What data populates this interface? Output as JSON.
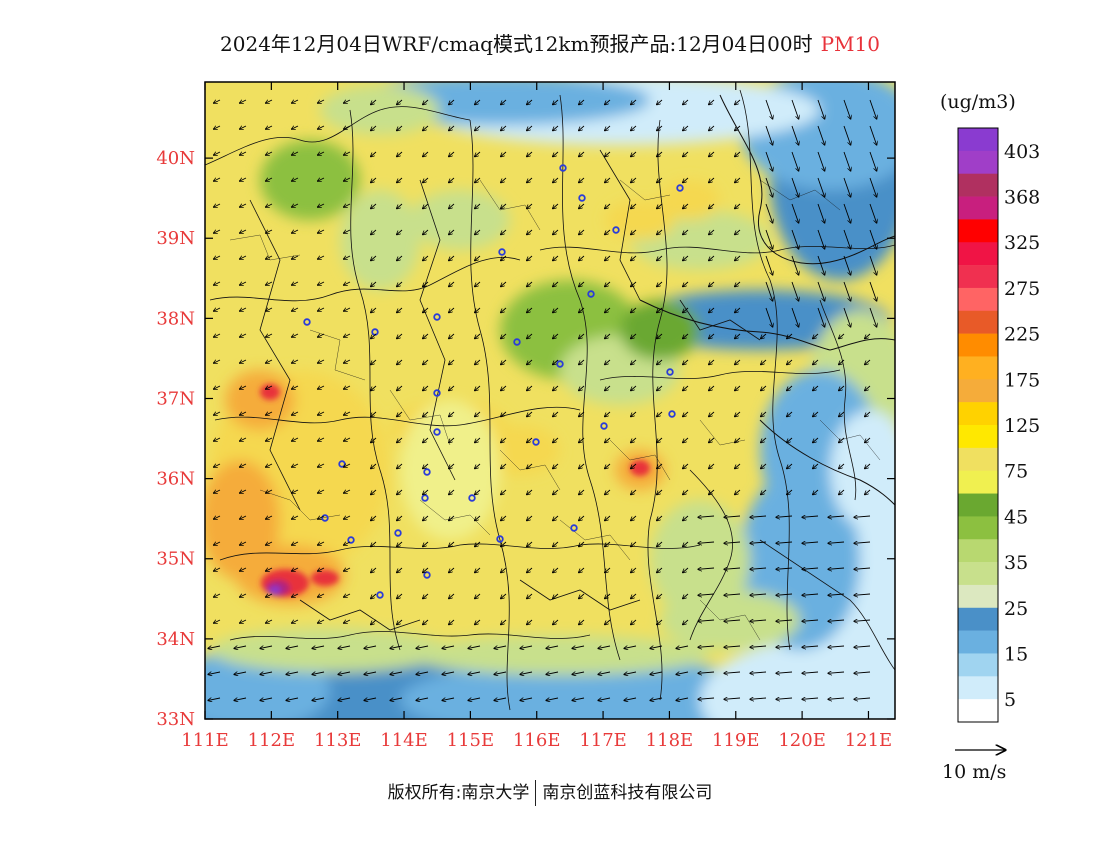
{
  "title": {
    "main": "2024年12月04日WRF/cmaq模式12km预报产品:12月04日00时",
    "variable": "PM10"
  },
  "footer": {
    "copyright": "版权所有:南京大学",
    "company": "南京创蓝科技有限公司"
  },
  "axes": {
    "lat_labels": [
      "40N",
      "39N",
      "38N",
      "37N",
      "36N",
      "35N",
      "34N",
      "33N"
    ],
    "lon_labels": [
      "111E",
      "112E",
      "113E",
      "114E",
      "115E",
      "116E",
      "117E",
      "118E",
      "119E",
      "120E",
      "121E"
    ],
    "lat_range": [
      33,
      40.95
    ],
    "lon_range": [
      111,
      121.4
    ],
    "label_color": "#e83a3a"
  },
  "colorbar": {
    "unit": "(ug/m3)",
    "labels": [
      "403",
      "368",
      "325",
      "275",
      "225",
      "175",
      "125",
      "75",
      "45",
      "35",
      "25",
      "15",
      "5"
    ],
    "colors": [
      "#8a3bd0",
      "#a03ec8",
      "#b03060",
      "#c81f7e",
      "#ff0000",
      "#f01445",
      "#f03050",
      "#ff6464",
      "#e85a28",
      "#ff8c00",
      "#ffb020",
      "#f5ac3a",
      "#ffd200",
      "#ffe800",
      "#f0e060",
      "#f0f050",
      "#6aa830",
      "#8cc040",
      "#b8d870",
      "#c8e08c",
      "#dce8c0",
      "#4a90c8",
      "#6ab0e0",
      "#a0d4f0",
      "#d0ecfa",
      "#ffffff"
    ]
  },
  "wind_legend": {
    "label": "10 m/s"
  },
  "colors": {
    "low": "#d0ecfa",
    "blue_mid": "#6ab0e0",
    "blue_dark": "#4a90c8",
    "green_light": "#c8e08c",
    "green_mid": "#8cc040",
    "green_dark": "#6aa830",
    "yellow_pale": "#f0f08a",
    "yellow": "#f0e060",
    "yellow_mid": "#f5d850",
    "orange": "#f5ac3a",
    "red": "#e8323a",
    "magenta": "#b0207a",
    "purple": "#8a3bd0"
  }
}
